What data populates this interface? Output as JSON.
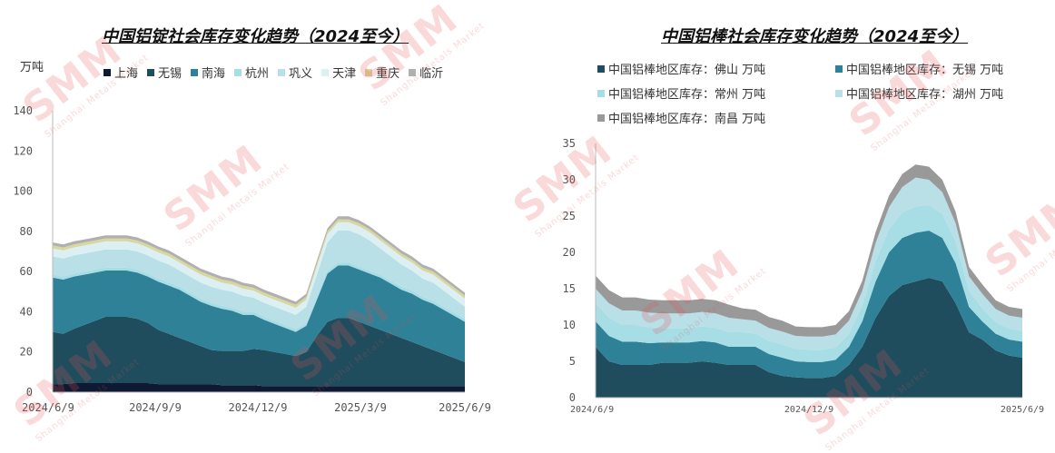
{
  "left": {
    "title": "中国铝锭社会库存变化趋势（2024至今）",
    "unit": "万吨",
    "chart_data": {
      "type": "area",
      "stacked": true,
      "x_ticks": [
        "2024/6/9",
        "2024/9/9",
        "2024/12/9",
        "2025/3/9",
        "2025/6/9"
      ],
      "ylim": [
        0,
        140
      ],
      "y_ticks": [
        0,
        20,
        40,
        60,
        80,
        100,
        120,
        140
      ],
      "grid": false,
      "legend": "top",
      "series": [
        {
          "name": "上海",
          "color": "#0e1a33",
          "values": [
            4,
            4,
            4.5,
            4.5,
            4.5,
            4.5,
            4.5,
            4.5,
            4.5,
            4.5,
            4,
            4,
            4,
            4,
            4,
            4,
            3.5,
            3.5,
            3.5,
            3.5,
            3,
            3,
            3,
            3,
            3,
            3,
            3,
            3,
            3,
            3,
            3,
            3,
            3,
            3,
            3,
            3,
            3,
            3,
            3,
            3
          ]
        },
        {
          "name": "无锡",
          "color": "#1f4d5e",
          "values": [
            26,
            25,
            27,
            29,
            31,
            33,
            33,
            33,
            32,
            30,
            27,
            25,
            23,
            21,
            19,
            17,
            17,
            17,
            17,
            18,
            18,
            17,
            16,
            15,
            17,
            25,
            32,
            34,
            34,
            32,
            30,
            28,
            26,
            24,
            22,
            20,
            18,
            16,
            14,
            12
          ]
        },
        {
          "name": "南海",
          "color": "#2e8197",
          "values": [
            27,
            27,
            26,
            25,
            24,
            23,
            23,
            23,
            23,
            23,
            24,
            24,
            24,
            23,
            22,
            22,
            21,
            20,
            18,
            17,
            15,
            14,
            13,
            12,
            13,
            18,
            24,
            26,
            26,
            26,
            26,
            26,
            25,
            24,
            24,
            23,
            23,
            22,
            21,
            20
          ]
        },
        {
          "name": "杭州",
          "color": "#a7dde5",
          "values": [
            1.5,
            1.5,
            1.5,
            1.5,
            1.5,
            1.5,
            1.5,
            1.5,
            1.5,
            1.5,
            1.5,
            1.5,
            1.5,
            1.5,
            1.5,
            1.5,
            1.5,
            1.5,
            1.5,
            1.5,
            1.5,
            1.5,
            1.5,
            1.5,
            1.5,
            1.5,
            1.5,
            1.5,
            1.5,
            1.5,
            1.5,
            1.5,
            1.5,
            1.5,
            1.5,
            1.5,
            1.5,
            1.5,
            1.5,
            1.5
          ]
        },
        {
          "name": "巩义",
          "color": "#b9dfe7",
          "values": [
            9,
            9,
            9,
            9,
            9,
            9,
            9,
            9,
            9,
            9,
            9,
            9,
            8,
            8,
            8,
            8,
            8,
            8,
            8,
            7,
            7,
            7,
            7,
            7,
            8,
            11,
            14,
            16,
            16,
            16,
            15,
            13,
            12,
            11,
            10,
            9,
            9,
            8,
            7,
            6
          ]
        },
        {
          "name": "天津",
          "color": "#dcf0f4",
          "values": [
            4,
            4,
            4,
            4,
            4,
            4,
            4,
            4,
            4,
            4,
            4,
            4,
            4,
            4,
            4,
            4,
            3.5,
            3.5,
            3.5,
            3.5,
            3.5,
            3.5,
            3.5,
            3.5,
            3.5,
            4,
            4,
            4,
            4,
            4,
            4,
            4,
            4,
            4,
            4,
            4,
            4,
            4,
            4,
            4
          ]
        },
        {
          "name": "重庆",
          "color": "#d9d7a0",
          "values": [
            1.5,
            1.5,
            1.5,
            1.5,
            1.5,
            1.5,
            1.5,
            1.5,
            1.5,
            1.5,
            1.5,
            1.5,
            1.5,
            1.5,
            1.5,
            1.5,
            1.5,
            1.5,
            1.5,
            1.5,
            1.5,
            1.5,
            1.5,
            1.5,
            1.5,
            1.5,
            1.5,
            1.5,
            1.5,
            1.5,
            1.5,
            1.5,
            1.5,
            1.5,
            1.5,
            1.5,
            1.5,
            1.5,
            1.5,
            1.5
          ]
        },
        {
          "name": "临沂",
          "color": "#b0b0b0",
          "values": [
            1.5,
            1.5,
            1.5,
            1.5,
            1.5,
            1.5,
            1.5,
            1.5,
            1.5,
            1.5,
            1.5,
            1.5,
            1.5,
            1.5,
            1.5,
            1.5,
            1.5,
            1.5,
            1.5,
            1.5,
            1.5,
            1.5,
            1.5,
            1.5,
            1.5,
            1.5,
            1.5,
            1.5,
            1.5,
            1.5,
            1.5,
            1.5,
            1.5,
            1.5,
            1.5,
            1.5,
            1.5,
            1.5,
            1.5,
            1.5
          ]
        }
      ]
    }
  },
  "right": {
    "title": "中国铝棒社会库存变化趋势（2024至今）",
    "chart_data": {
      "type": "area",
      "stacked": true,
      "x_ticks": [
        "2024/6/9",
        "2024/12/9",
        "2025/6/9"
      ],
      "ylim": [
        0,
        35
      ],
      "y_ticks": [
        0,
        5,
        10,
        15,
        20,
        25,
        30,
        35
      ],
      "grid": false,
      "legend": "top",
      "series": [
        {
          "name": "中国铝棒地区库存：佛山 万吨",
          "color": "#1f4d5e",
          "values": [
            7,
            5,
            4.5,
            4.5,
            4.5,
            4.8,
            4.8,
            4.8,
            5,
            4.8,
            4.5,
            4.5,
            4.5,
            3.5,
            3,
            2.8,
            2.7,
            2.7,
            3,
            4.5,
            7,
            11,
            14,
            15.5,
            16,
            16.5,
            16,
            13,
            9,
            8,
            6.5,
            5.8,
            5.5
          ]
        },
        {
          "name": "中国铝棒地区库存：无锡 万吨",
          "color": "#2e8197",
          "values": [
            3.5,
            3.5,
            3.2,
            3.2,
            3.0,
            2.8,
            2.8,
            2.8,
            2.8,
            2.8,
            2.5,
            2.5,
            2.5,
            2.5,
            2.5,
            2.2,
            2.2,
            2.2,
            2.2,
            2.5,
            3.5,
            5,
            6,
            6.5,
            6.7,
            6.5,
            6,
            5.5,
            3.5,
            2.5,
            2.3,
            2.2,
            2.2
          ]
        },
        {
          "name": "中国铝棒地区库存：常州 万吨",
          "color": "#a7dde5",
          "values": [
            2.5,
            2.5,
            2.3,
            2.3,
            2.2,
            2,
            2,
            2,
            2,
            2,
            2,
            2,
            1.8,
            1.8,
            1.8,
            1.7,
            1.7,
            1.7,
            1.7,
            1.8,
            2.2,
            2.8,
            3.2,
            3.5,
            3.6,
            3.5,
            3.3,
            3,
            2.2,
            1.8,
            1.6,
            1.5,
            1.5
          ]
        },
        {
          "name": "中国铝棒地区库存：湖州 万吨",
          "color": "#b9dfe7",
          "values": [
            2,
            2,
            2,
            2,
            2,
            2,
            2,
            2,
            2,
            2,
            2,
            1.8,
            1.8,
            1.8,
            1.8,
            1.8,
            1.8,
            1.8,
            1.8,
            1.8,
            2,
            2.5,
            3,
            3.5,
            4,
            3.5,
            3,
            2.5,
            2,
            2,
            1.8,
            1.8,
            1.8
          ]
        },
        {
          "name": "中国铝棒地区库存：南昌 万吨",
          "color": "#999999",
          "values": [
            1.8,
            1.8,
            1.8,
            1.8,
            1.8,
            1.8,
            1.8,
            1.8,
            1.8,
            1.8,
            1.8,
            1.5,
            1.5,
            1.5,
            1.5,
            1.3,
            1.3,
            1.3,
            1.3,
            1.3,
            1.4,
            1.5,
            1.6,
            1.8,
            1.8,
            1.8,
            1.7,
            1.6,
            1.3,
            1.3,
            1.2,
            1.2,
            1.2
          ]
        }
      ]
    }
  },
  "watermark": {
    "brand": "SMM",
    "sub": "Shanghai Metals Market"
  }
}
